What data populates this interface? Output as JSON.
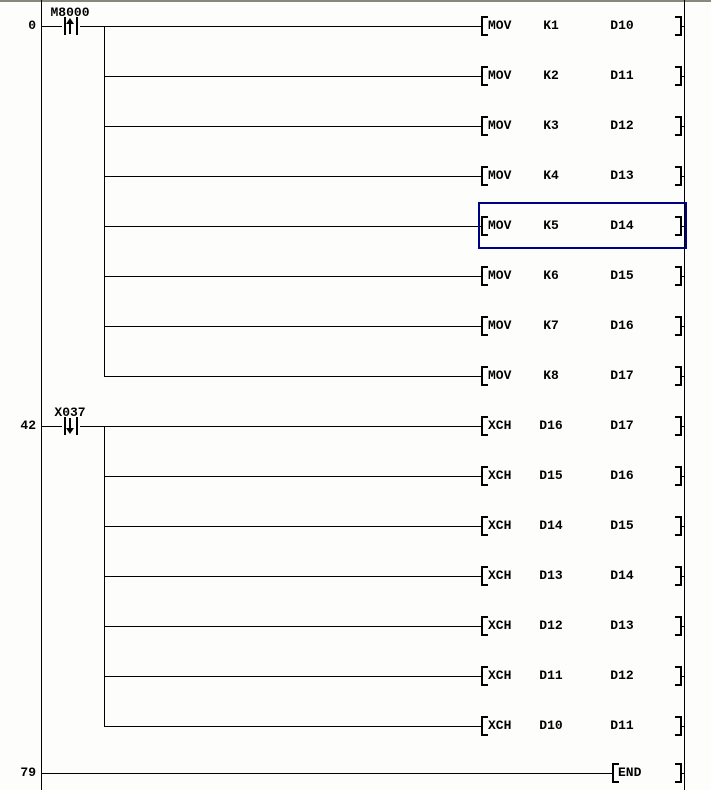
{
  "colors": {
    "wire": "#000000",
    "background": "#fdfdfb",
    "selection_cursor": "#000082",
    "top_divider": "#868a7d"
  },
  "rungs": [
    {
      "step": "0",
      "contact": {
        "label": "M8000",
        "type": "rising-pulse-contact"
      },
      "instructions": [
        {
          "op": "MOV",
          "operand1": "K1",
          "operand2": "D10",
          "selected": false
        },
        {
          "op": "MOV",
          "operand1": "K2",
          "operand2": "D11",
          "selected": false
        },
        {
          "op": "MOV",
          "operand1": "K3",
          "operand2": "D12",
          "selected": false
        },
        {
          "op": "MOV",
          "operand1": "K4",
          "operand2": "D13",
          "selected": false
        },
        {
          "op": "MOV",
          "operand1": "K5",
          "operand2": "D14",
          "selected": true
        },
        {
          "op": "MOV",
          "operand1": "K6",
          "operand2": "D15",
          "selected": false
        },
        {
          "op": "MOV",
          "operand1": "K7",
          "operand2": "D16",
          "selected": false
        },
        {
          "op": "MOV",
          "operand1": "K8",
          "operand2": "D17",
          "selected": false
        }
      ]
    },
    {
      "step": "42",
      "contact": {
        "label": "X037",
        "type": "falling-pulse-contact"
      },
      "instructions": [
        {
          "op": "XCH",
          "operand1": "D16",
          "operand2": "D17",
          "selected": false
        },
        {
          "op": "XCH",
          "operand1": "D15",
          "operand2": "D16",
          "selected": false
        },
        {
          "op": "XCH",
          "operand1": "D14",
          "operand2": "D15",
          "selected": false
        },
        {
          "op": "XCH",
          "operand1": "D13",
          "operand2": "D14",
          "selected": false
        },
        {
          "op": "XCH",
          "operand1": "D12",
          "operand2": "D13",
          "selected": false
        },
        {
          "op": "XCH",
          "operand1": "D11",
          "operand2": "D12",
          "selected": false
        },
        {
          "op": "XCH",
          "operand1": "D10",
          "operand2": "D11",
          "selected": false
        }
      ]
    },
    {
      "step": "79",
      "contact": null,
      "instructions": [
        {
          "op": "END",
          "operand1": "",
          "operand2": "",
          "selected": false
        }
      ]
    }
  ]
}
